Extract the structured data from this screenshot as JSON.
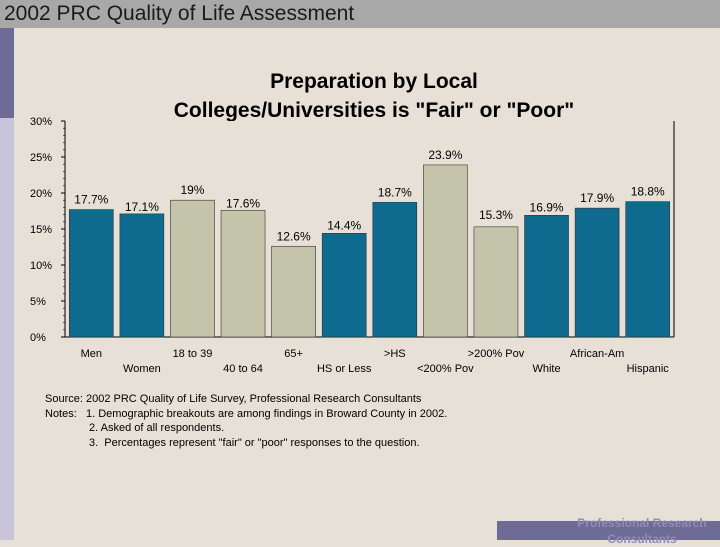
{
  "header": {
    "slide_title": "2002 PRC Quality of Life Assessment"
  },
  "chart_data": {
    "type": "bar",
    "title_lines": [
      "Preparation by Local",
      "Colleges/Universities is \"Fair\" or \"Poor\""
    ],
    "categories": [
      "Men",
      "Women",
      "18 to 39",
      "40 to 64",
      "65+",
      "HS or Less",
      ">HS",
      "<200% Pov",
      ">200% Pov",
      "White",
      "African-Am",
      "Hispanic"
    ],
    "values": [
      17.7,
      17.1,
      19,
      17.6,
      12.6,
      14.4,
      18.7,
      23.9,
      15.3,
      16.9,
      17.9,
      18.8
    ],
    "value_labels": [
      "17.7%",
      "17.1%",
      "19%",
      "17.6%",
      "12.6%",
      "14.4%",
      "18.7%",
      "23.9%",
      "15.3%",
      "16.9%",
      "17.9%",
      "18.8%"
    ],
    "bar_colors": [
      "#0e6a8e",
      "#0e6a8e",
      "#c4c4aa",
      "#c4c4aa",
      "#c4c4aa",
      "#0e6a8e",
      "#0e6a8e",
      "#c4c4aa",
      "#c4c4aa",
      "#0e6a8e",
      "#0e6a8e",
      "#0e6a8e"
    ],
    "yticks": [
      "0%",
      "5%",
      "10%",
      "15%",
      "20%",
      "25%",
      "30%"
    ],
    "ylim": [
      0,
      30
    ],
    "grid": false,
    "xlabel": "",
    "ylabel": ""
  },
  "notes": {
    "source": "Source: 2002 PRC Quality of Life Survey, Professional Research Consultants",
    "note1": "Notes:   1. Demographic breakouts are among findings in Broward County in 2002.",
    "note2": "2. Asked of all respondents.",
    "note3": "3.  Percentages represent \"fair\" or \"poor\" responses to the question."
  },
  "footer": {
    "line1": "Professional Research",
    "line2": "Consultants"
  },
  "colors": {
    "accent": "#6e6b97",
    "blue_bar": "#0e6a8e",
    "tan_bar": "#c4c4aa",
    "background": "#e6e0d6"
  }
}
